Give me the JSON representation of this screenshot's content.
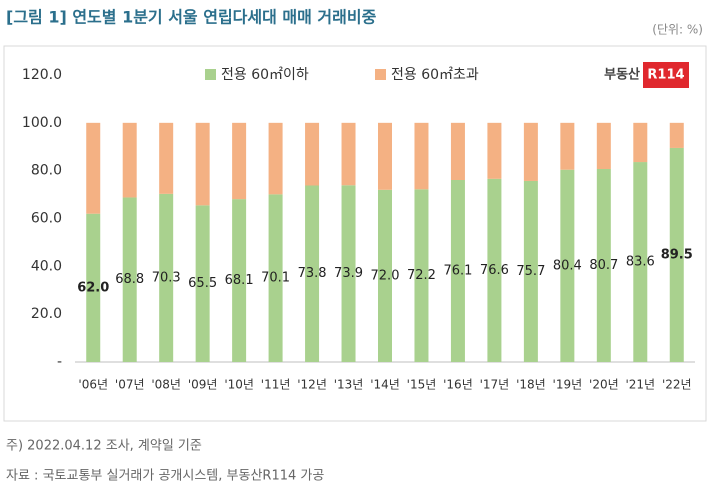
{
  "title": "[그림 1] 연도별 1분기 서울 연립다세대 매매 거래비중",
  "unit": "(단위: %)",
  "logo": {
    "text": "부동산",
    "badge": "R114"
  },
  "footnotes": [
    "주) 2022.04.12 조사, 계약일 기준",
    "자료 : 국토교통부 실거래가 공개시스템, 부동산R114 가공"
  ],
  "chart_data": {
    "type": "stacked_bar",
    "categories": [
      "'06년",
      "'07년",
      "'08년",
      "'09년",
      "'10년",
      "'11년",
      "'12년",
      "'13년",
      "'14년",
      "'15년",
      "'16년",
      "'17년",
      "'18년",
      "'19년",
      "'20년",
      "'21년",
      "'22년"
    ],
    "series": [
      {
        "name": "전용 60㎡이하",
        "color": "#a9d18e",
        "values": [
          62.0,
          68.8,
          70.3,
          65.5,
          68.1,
          70.1,
          73.8,
          73.9,
          72.0,
          72.2,
          76.1,
          76.6,
          75.7,
          80.4,
          80.7,
          83.6,
          89.5
        ],
        "value_labels": [
          "62.0",
          "68.8",
          "70.3",
          "65.5",
          "68.1",
          "70.1",
          "73.8",
          "73.9",
          "72.0",
          "72.2",
          "76.1",
          "76.6",
          "75.7",
          "80.4",
          "80.7",
          "83.6",
          "89.5"
        ]
      },
      {
        "name": "전용 60㎡초과",
        "color": "#f4b183",
        "values": [
          38.0,
          31.2,
          29.7,
          34.5,
          31.9,
          29.9,
          26.2,
          26.1,
          28.0,
          27.8,
          23.9,
          23.4,
          24.3,
          19.6,
          19.3,
          16.4,
          10.5
        ]
      }
    ],
    "ylim": [
      0,
      120
    ],
    "yticks": [
      {
        "value": 0,
        "label": "-"
      },
      {
        "value": 20,
        "label": "20.0"
      },
      {
        "value": 40,
        "label": "40.0"
      },
      {
        "value": 60,
        "label": "60.0"
      },
      {
        "value": 80,
        "label": "80.0"
      },
      {
        "value": 100,
        "label": "100.0"
      },
      {
        "value": 120,
        "label": "120.0"
      }
    ],
    "grid": false
  }
}
